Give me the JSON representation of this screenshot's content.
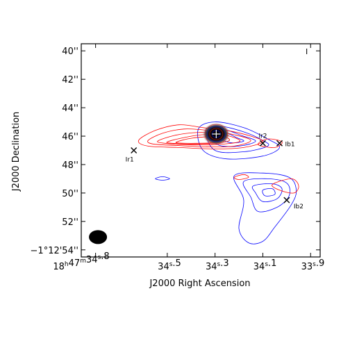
{
  "chart_data": {
    "type": "contour",
    "panel_label": "I",
    "xlabel": "J2000 Right Ascension",
    "ylabel": "J2000 Declination",
    "x_unit": "seconds of RA (18h47m)",
    "y_unit": "arcsec offset (-1°12')",
    "xlim": [
      34.86,
      33.86
    ],
    "ylim": [
      54.5,
      39.5
    ],
    "x_ticks": [
      {
        "value": 34.8,
        "parts": [
          "18",
          "h",
          "47",
          "m",
          "34",
          "s",
          ".8"
        ]
      },
      {
        "value": 34.5,
        "parts": [
          "",
          "",
          "",
          "",
          "34",
          "s",
          ".5"
        ]
      },
      {
        "value": 34.3,
        "parts": [
          "",
          "",
          "",
          "",
          "34",
          "s",
          ".3"
        ]
      },
      {
        "value": 34.1,
        "parts": [
          "",
          "",
          "",
          "",
          "34",
          "s",
          ".1"
        ]
      },
      {
        "value": 33.9,
        "parts": [
          "",
          "",
          "",
          "",
          "33",
          "s",
          ".9"
        ]
      }
    ],
    "y_ticks": [
      {
        "value": 40,
        "label": "40''"
      },
      {
        "value": 42,
        "label": "42''"
      },
      {
        "value": 44,
        "label": "44''"
      },
      {
        "value": 46,
        "label": "46''"
      },
      {
        "value": 48,
        "label": "48''"
      },
      {
        "value": 50,
        "label": "50''"
      },
      {
        "value": 52,
        "label": "52''"
      },
      {
        "value": 54,
        "label": "−1°12'54''"
      }
    ],
    "colors": {
      "red": "#ff0000",
      "blue": "#0000ff",
      "black": "#000000"
    },
    "continuum_peak": {
      "ra": 34.295,
      "dec": 45.85
    },
    "beam": {
      "ra": 34.79,
      "dec": 53.1,
      "major_arcsec": 1.2,
      "minor_arcsec": 0.9
    },
    "sources": [
      {
        "name": "Ir1",
        "ra": 34.64,
        "dec": 47.0
      },
      {
        "name": "Ir2",
        "ra": 34.1,
        "dec": 46.5
      },
      {
        "name": "Ib1",
        "ra": 34.03,
        "dec": 46.5
      },
      {
        "name": "Ib2",
        "ra": 34.0,
        "dec": 50.5
      }
    ],
    "red_contours": [
      [
        [
          34.62,
          46.3
        ],
        [
          34.55,
          45.6
        ],
        [
          34.45,
          45.2
        ],
        [
          34.35,
          45.4
        ],
        [
          34.25,
          45.6
        ],
        [
          34.15,
          46.0
        ],
        [
          34.1,
          46.4
        ],
        [
          34.18,
          46.8
        ],
        [
          34.3,
          46.9
        ],
        [
          34.45,
          46.8
        ],
        [
          34.58,
          46.7
        ],
        [
          34.62,
          46.3
        ]
      ],
      [
        [
          34.58,
          46.3
        ],
        [
          34.52,
          45.8
        ],
        [
          34.43,
          45.5
        ],
        [
          34.33,
          45.6
        ],
        [
          34.22,
          45.9
        ],
        [
          34.15,
          46.3
        ],
        [
          34.22,
          46.7
        ],
        [
          34.34,
          46.75
        ],
        [
          34.47,
          46.65
        ],
        [
          34.56,
          46.55
        ],
        [
          34.58,
          46.3
        ]
      ],
      [
        [
          34.54,
          46.35
        ],
        [
          34.47,
          45.95
        ],
        [
          34.38,
          45.75
        ],
        [
          34.3,
          45.8
        ],
        [
          34.22,
          46.1
        ],
        [
          34.2,
          46.4
        ],
        [
          34.3,
          46.6
        ],
        [
          34.42,
          46.6
        ],
        [
          34.51,
          46.5
        ],
        [
          34.54,
          46.35
        ]
      ],
      [
        [
          34.5,
          46.4
        ],
        [
          34.43,
          46.1
        ],
        [
          34.35,
          45.9
        ],
        [
          34.27,
          46.0
        ],
        [
          34.24,
          46.3
        ],
        [
          34.3,
          46.5
        ],
        [
          34.4,
          46.55
        ],
        [
          34.48,
          46.5
        ],
        [
          34.5,
          46.4
        ]
      ],
      [
        [
          34.46,
          46.4
        ],
        [
          34.4,
          46.15
        ],
        [
          34.32,
          46.05
        ],
        [
          34.27,
          46.2
        ],
        [
          34.3,
          46.45
        ],
        [
          34.38,
          46.5
        ],
        [
          34.45,
          46.48
        ],
        [
          34.46,
          46.4
        ]
      ],
      [
        [
          34.22,
          48.9
        ],
        [
          34.18,
          48.7
        ],
        [
          34.16,
          48.9
        ],
        [
          34.2,
          49.05
        ],
        [
          34.22,
          48.9
        ]
      ],
      [
        [
          34.06,
          49.4
        ],
        [
          33.98,
          49.0
        ],
        [
          33.95,
          49.5
        ],
        [
          33.97,
          50.0
        ],
        [
          34.03,
          49.8
        ],
        [
          34.06,
          49.4
        ]
      ],
      [
        [
          34.12,
          46.6
        ],
        [
          34.08,
          46.2
        ],
        [
          34.02,
          46.4
        ],
        [
          34.05,
          46.8
        ],
        [
          34.12,
          46.6
        ]
      ]
    ],
    "blue_contours": [
      [
        [
          34.37,
          45.5
        ],
        [
          34.3,
          45.0
        ],
        [
          34.18,
          45.4
        ],
        [
          34.08,
          46.2
        ],
        [
          34.03,
          46.8
        ],
        [
          34.1,
          47.4
        ],
        [
          34.25,
          47.6
        ],
        [
          34.35,
          47.0
        ],
        [
          34.37,
          45.5
        ]
      ],
      [
        [
          34.34,
          45.6
        ],
        [
          34.28,
          45.3
        ],
        [
          34.18,
          45.7
        ],
        [
          34.1,
          46.3
        ],
        [
          34.08,
          46.7
        ],
        [
          34.18,
          47.1
        ],
        [
          34.3,
          47.0
        ],
        [
          34.34,
          45.6
        ]
      ],
      [
        [
          34.32,
          45.75
        ],
        [
          34.27,
          45.5
        ],
        [
          34.19,
          45.95
        ],
        [
          34.13,
          46.35
        ],
        [
          34.2,
          46.7
        ],
        [
          34.29,
          46.6
        ],
        [
          34.32,
          45.75
        ]
      ],
      [
        [
          34.3,
          45.9
        ],
        [
          34.26,
          45.75
        ],
        [
          34.21,
          46.1
        ],
        [
          34.18,
          46.35
        ],
        [
          34.24,
          46.45
        ],
        [
          34.3,
          45.9
        ]
      ],
      [
        [
          34.22,
          48.8
        ],
        [
          34.1,
          48.6
        ],
        [
          33.99,
          48.9
        ],
        [
          33.96,
          49.8
        ],
        [
          33.98,
          50.8
        ],
        [
          34.05,
          52.4
        ],
        [
          34.1,
          53.4
        ],
        [
          34.16,
          53.5
        ],
        [
          34.2,
          52.5
        ],
        [
          34.18,
          50.5
        ],
        [
          34.22,
          48.8
        ]
      ],
      [
        [
          34.18,
          49.2
        ],
        [
          34.08,
          49.0
        ],
        [
          34.0,
          49.3
        ],
        [
          33.99,
          50.2
        ],
        [
          34.04,
          51.0
        ],
        [
          34.12,
          51.3
        ],
        [
          34.15,
          50.3
        ],
        [
          34.18,
          49.2
        ]
      ],
      [
        [
          34.14,
          49.5
        ],
        [
          34.06,
          49.35
        ],
        [
          34.02,
          49.7
        ],
        [
          34.04,
          50.4
        ],
        [
          34.1,
          50.6
        ],
        [
          34.13,
          50.0
        ],
        [
          34.14,
          49.5
        ]
      ],
      [
        [
          34.1,
          49.8
        ],
        [
          34.06,
          49.7
        ],
        [
          34.05,
          50.1
        ],
        [
          34.09,
          50.2
        ],
        [
          34.1,
          49.8
        ]
      ],
      [
        [
          34.55,
          49.0
        ],
        [
          34.52,
          48.85
        ],
        [
          34.49,
          49.0
        ],
        [
          34.52,
          49.1
        ],
        [
          34.55,
          49.0
        ]
      ]
    ]
  }
}
